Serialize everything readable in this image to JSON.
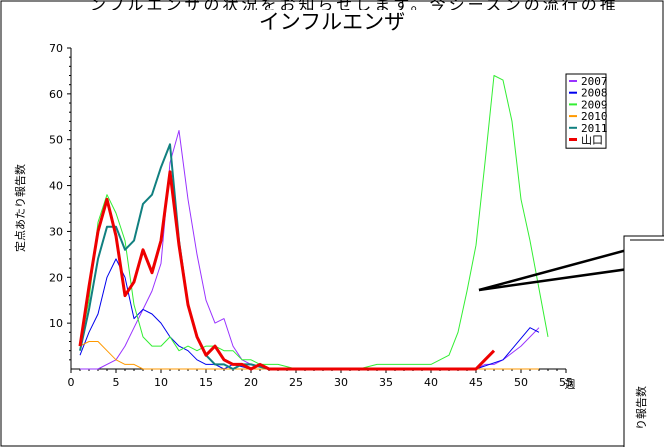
{
  "header": {
    "clipped_text": "ンフルエンザの状況をお知らせします。今シーズンの流行の推"
  },
  "chart_data": {
    "type": "line",
    "title": "インフルエンザ",
    "xlabel": "週",
    "ylabel": "定点あたり報告数",
    "xlim": [
      0,
      55
    ],
    "ylim": [
      0,
      70
    ],
    "xticks": [
      0,
      5,
      10,
      15,
      20,
      25,
      30,
      35,
      40,
      45,
      50,
      55
    ],
    "yticks": [
      10,
      20,
      30,
      40,
      50,
      60,
      70
    ],
    "legend_position": "top-right",
    "grid": false,
    "series": [
      {
        "name": "2007",
        "color": "#9933ff",
        "width": 1,
        "x": [
          1,
          3,
          5,
          6,
          7,
          8,
          9,
          10,
          11,
          12,
          13,
          14,
          15,
          16,
          17,
          18,
          19,
          20,
          22,
          30,
          40,
          45,
          46,
          47,
          48,
          50,
          52
        ],
        "y": [
          0,
          0,
          2,
          5,
          9,
          13,
          17,
          23,
          45,
          52,
          37,
          25,
          15,
          10,
          11,
          5,
          2,
          1,
          0,
          0,
          0,
          0,
          1,
          1,
          2,
          5,
          9
        ]
      },
      {
        "name": "2008",
        "color": "#0000ee",
        "width": 1,
        "x": [
          1,
          2,
          3,
          4,
          5,
          6,
          7,
          8,
          9,
          10,
          11,
          12,
          13,
          14,
          15,
          16,
          17,
          18,
          20,
          25,
          40,
          45,
          48,
          51,
          52
        ],
        "y": [
          3,
          8,
          12,
          20,
          24,
          20,
          11,
          13,
          12,
          10,
          7,
          5,
          4,
          2,
          1,
          1,
          0,
          1,
          0,
          0,
          0,
          0,
          2,
          9,
          8
        ]
      },
      {
        "name": "2009",
        "color": "#33ee33",
        "width": 1,
        "x": [
          1,
          2,
          3,
          4,
          5,
          6,
          7,
          8,
          9,
          10,
          11,
          12,
          13,
          14,
          15,
          16,
          17,
          18,
          19,
          20,
          21,
          22,
          23,
          25,
          30,
          32,
          34,
          36,
          38,
          40,
          41,
          42,
          43,
          44,
          45,
          46,
          47,
          48,
          49,
          50,
          51,
          53
        ],
        "y": [
          5,
          15,
          32,
          38,
          34,
          28,
          14,
          7,
          5,
          5,
          7,
          4,
          5,
          4,
          5,
          5,
          4,
          4,
          2,
          2,
          1,
          1,
          1,
          0,
          0,
          0,
          1,
          1,
          1,
          1,
          2,
          3,
          8,
          17,
          27,
          45,
          64,
          63,
          54,
          37,
          28,
          7
        ]
      },
      {
        "name": "2010",
        "color": "#ff9900",
        "width": 1,
        "x": [
          1,
          2,
          3,
          4,
          5,
          6,
          7,
          8,
          10,
          20,
          30,
          40,
          52
        ],
        "y": [
          5,
          6,
          6,
          4,
          2,
          1,
          1,
          0,
          0,
          0,
          0,
          0,
          0
        ]
      },
      {
        "name": "2011",
        "color": "#118080",
        "width": 2,
        "x": [
          1,
          2,
          3,
          4,
          5,
          6,
          7,
          8,
          9,
          10,
          11,
          12,
          13,
          14,
          15,
          16,
          17,
          18,
          19,
          20,
          22,
          25
        ],
        "y": [
          4,
          13,
          24,
          31,
          31,
          26,
          28,
          36,
          38,
          44,
          49,
          28,
          14,
          7,
          3,
          1,
          1,
          0,
          1,
          1,
          0,
          0
        ]
      },
      {
        "name": "山口",
        "color": "#ee0000",
        "width": 3,
        "x": [
          1,
          2,
          3,
          4,
          5,
          6,
          7,
          8,
          9,
          10,
          11,
          12,
          13,
          14,
          15,
          16,
          17,
          18,
          19,
          20,
          21,
          22,
          25,
          30,
          40,
          44,
          45,
          46,
          47
        ],
        "y": [
          5,
          18,
          30,
          37,
          29,
          16,
          19,
          26,
          21,
          28,
          43,
          27,
          14,
          7,
          3,
          5,
          2,
          1,
          1,
          0,
          1,
          0,
          0,
          0,
          0,
          0,
          0,
          2,
          4
        ]
      }
    ]
  }
}
